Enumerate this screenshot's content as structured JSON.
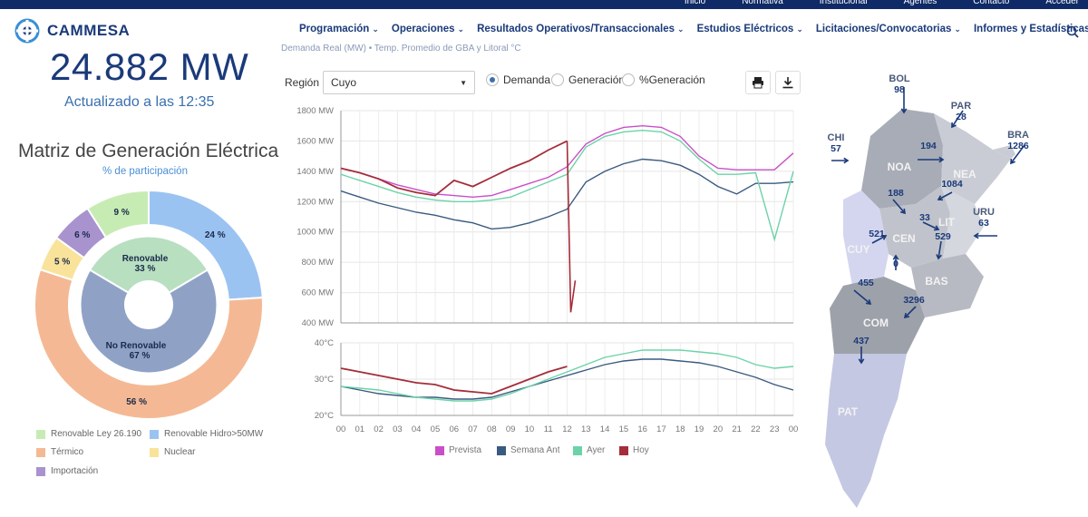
{
  "topbar": {
    "links": [
      "Inicio",
      "Normativa",
      "Institucional",
      "Agentes",
      "Contacto",
      "Acceder"
    ]
  },
  "logo": {
    "name": "CAMMESA"
  },
  "nav": [
    {
      "label": "Programación"
    },
    {
      "label": "Operaciones"
    },
    {
      "label": "Resultados Operativos/Transaccionales"
    },
    {
      "label": "Estudios Eléctricos"
    },
    {
      "label": "Licitaciones/Convocatorias"
    },
    {
      "label": "Informes y Estadísticas"
    }
  ],
  "demand": {
    "value": "24.882 MW",
    "updated": "Actualizado a las 12:35"
  },
  "matrix": {
    "title": "Matriz de Generación Eléctrica",
    "subtitle": "% de participación",
    "outer": [
      {
        "label": "24 %",
        "value": 24,
        "color": "#9bc3f2"
      },
      {
        "label": "56 %",
        "value": 56,
        "color": "#f4b994"
      },
      {
        "label": "5 %",
        "value": 5,
        "color": "#f9e39b"
      },
      {
        "label": "6 %",
        "value": 6,
        "color": "#a893cf"
      },
      {
        "label": "9 %",
        "value": 9,
        "color": "#c7ecb3"
      }
    ],
    "inner": [
      {
        "label": "Renovable",
        "pct": "33 %",
        "value": 33,
        "color": "#b8dfc0"
      },
      {
        "label": "No Renovable",
        "pct": "67 %",
        "value": 67,
        "color": "#8fa2c6"
      }
    ],
    "legend": [
      {
        "label": "Renovable Ley 26.190",
        "color": "#c7ecb3"
      },
      {
        "label": "Renovable Hidro>50MW",
        "color": "#9bc3f2"
      },
      {
        "label": "Térmico",
        "color": "#f4b994"
      },
      {
        "label": "Nuclear",
        "color": "#f9e39b"
      },
      {
        "label": "Importación",
        "color": "#a893cf"
      }
    ]
  },
  "chart_header": "Demanda Real (MW) • Temp. Promedio de GBA y Litoral °C",
  "controls": {
    "region_label": "Región",
    "region_value": "Cuyo",
    "radios": [
      {
        "label": "Demanda",
        "checked": true
      },
      {
        "label": "Generación",
        "checked": false
      },
      {
        "label": "%Generación",
        "checked": false
      }
    ],
    "print_icon": "print-icon",
    "download_icon": "download-icon"
  },
  "chart_data": {
    "type": "line",
    "x": [
      "00",
      "01",
      "02",
      "03",
      "04",
      "05",
      "06",
      "07",
      "08",
      "09",
      "10",
      "11",
      "12",
      "13",
      "14",
      "15",
      "16",
      "17",
      "18",
      "19",
      "20",
      "21",
      "22",
      "23",
      "00"
    ],
    "ylabel_ticks": [
      "400 MW",
      "600 MW",
      "800 MW",
      "1000 MW",
      "1200 MW",
      "1400 MW",
      "1600 MW",
      "1800 MW"
    ],
    "ylim": [
      400,
      1800
    ],
    "temp_ticks": [
      "20°C",
      "30°C",
      "40°C"
    ],
    "temp_lim": [
      20,
      40
    ],
    "series": [
      {
        "name": "Prevista",
        "color": "#c94fc9",
        "values": [
          1420,
          1390,
          1350,
          1310,
          1280,
          1250,
          1240,
          1230,
          1240,
          1280,
          1320,
          1360,
          1430,
          1580,
          1650,
          1690,
          1700,
          1690,
          1630,
          1500,
          1420,
          1410,
          1410,
          1410,
          1520
        ]
      },
      {
        "name": "Semana Ant",
        "color": "#3a5a80",
        "values": [
          1270,
          1230,
          1190,
          1160,
          1130,
          1110,
          1080,
          1060,
          1020,
          1030,
          1060,
          1100,
          1150,
          1330,
          1400,
          1450,
          1480,
          1470,
          1440,
          1380,
          1300,
          1250,
          1320,
          1320,
          1330
        ]
      },
      {
        "name": "Ayer",
        "color": "#6cd3a8",
        "values": [
          1380,
          1340,
          1300,
          1260,
          1230,
          1210,
          1200,
          1200,
          1210,
          1230,
          1280,
          1330,
          1380,
          1560,
          1630,
          1660,
          1670,
          1660,
          1600,
          1480,
          1380,
          1380,
          1390,
          950,
          1400
        ]
      },
      {
        "name": "Hoy",
        "color": "#a52d3a",
        "values": [
          1420,
          1390,
          1350,
          1290,
          1260,
          1240,
          1340,
          1300,
          1360,
          1420,
          1470,
          1540,
          1600,
          null,
          null,
          null,
          null,
          null,
          null,
          null,
          null,
          null,
          null,
          null,
          null
        ]
      }
    ],
    "temp_series": [
      {
        "name": "Prevista",
        "color": "#c94fc9",
        "values": []
      },
      {
        "name": "Semana Ant",
        "color": "#3a5a80",
        "values": [
          28,
          27,
          26,
          25.5,
          25,
          25,
          24.5,
          24.5,
          25,
          26.5,
          28,
          29.5,
          31,
          32.5,
          34,
          35,
          35.5,
          35.5,
          35,
          34.5,
          33.5,
          32,
          30.5,
          28.5,
          27
        ]
      },
      {
        "name": "Ayer",
        "color": "#6cd3a8",
        "values": [
          28,
          27.5,
          27,
          26,
          25,
          24.5,
          24,
          24,
          24.5,
          26,
          28,
          30,
          32,
          34,
          36,
          37,
          38,
          38,
          38,
          37.5,
          37,
          36,
          34,
          33,
          33.5
        ]
      },
      {
        "name": "Hoy",
        "color": "#a52d3a",
        "values": [
          33,
          32,
          31,
          30,
          29,
          28.5,
          27,
          26.5,
          26,
          28,
          30,
          32,
          33.5,
          null,
          null,
          null,
          null,
          null,
          null,
          null,
          null,
          null,
          null,
          null,
          null
        ]
      }
    ],
    "legend": [
      "Prevista",
      "Semana Ant",
      "Ayer",
      "Hoy"
    ]
  },
  "map": {
    "regions": [
      {
        "name": "NOA"
      },
      {
        "name": "NEA"
      },
      {
        "name": "CEN"
      },
      {
        "name": "LIT"
      },
      {
        "name": "CUY"
      },
      {
        "name": "BAS"
      },
      {
        "name": "COM"
      },
      {
        "name": "PAT"
      }
    ],
    "flows": [
      {
        "label": "BOL",
        "value": "98"
      },
      {
        "label": "PAR",
        "value": "28"
      },
      {
        "label": "BRA",
        "value": "1286"
      },
      {
        "label": "CHI",
        "value": "57"
      },
      {
        "label": "URU",
        "value": "63"
      },
      {
        "label": "",
        "value": "194"
      },
      {
        "label": "",
        "value": "1084"
      },
      {
        "label": "",
        "value": "188"
      },
      {
        "label": "",
        "value": "33"
      },
      {
        "label": "",
        "value": "521"
      },
      {
        "label": "",
        "value": "529"
      },
      {
        "label": "",
        "value": "0"
      },
      {
        "label": "",
        "value": "455"
      },
      {
        "label": "",
        "value": "3296"
      },
      {
        "label": "",
        "value": "437"
      }
    ]
  }
}
